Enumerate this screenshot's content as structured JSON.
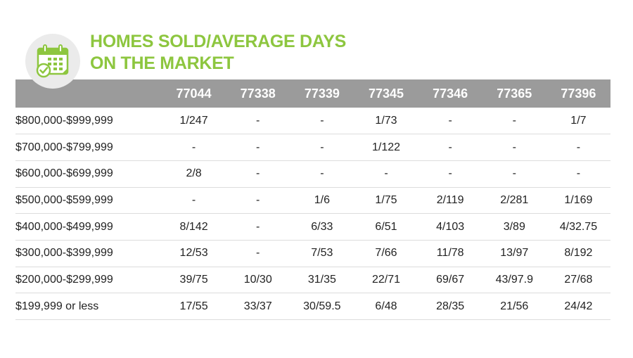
{
  "title": {
    "line1": "HOMES SOLD/AVERAGE DAYS",
    "line2": "ON THE MARKET"
  },
  "icon": "calendar-check-icon",
  "colors": {
    "accent": "#8dc63f",
    "header_bg": "#9b9b9b",
    "icon_bg": "#ebebeb"
  },
  "table": {
    "columns": [
      "",
      "77044",
      "77338",
      "77339",
      "77345",
      "77346",
      "77365",
      "77396"
    ],
    "rows": [
      [
        "$800,000-$999,999",
        "1/247",
        "-",
        "-",
        "1/73",
        "-",
        "-",
        "1/7"
      ],
      [
        "$700,000-$799,999",
        "-",
        "-",
        "-",
        "1/122",
        "-",
        "-",
        "-"
      ],
      [
        "$600,000-$699,999",
        "2/8",
        "-",
        "-",
        "-",
        "-",
        "-",
        "-"
      ],
      [
        "$500,000-$599,999",
        "-",
        "-",
        "1/6",
        "1/75",
        "2/119",
        "2/281",
        "1/169"
      ],
      [
        "$400,000-$499,999",
        "8/142",
        "-",
        "6/33",
        "6/51",
        "4/103",
        "3/89",
        "4/32.75"
      ],
      [
        "$300,000-$399,999",
        "12/53",
        "-",
        "7/53",
        "7/66",
        "11/78",
        "13/97",
        "8/192"
      ],
      [
        "$200,000-$299,999",
        "39/75",
        "10/30",
        "31/35",
        "22/71",
        "69/67",
        "43/97.9",
        "27/68"
      ],
      [
        "$199,999 or less",
        "17/55",
        "33/37",
        "30/59.5",
        "6/48",
        "28/35",
        "21/56",
        "24/42"
      ]
    ]
  }
}
